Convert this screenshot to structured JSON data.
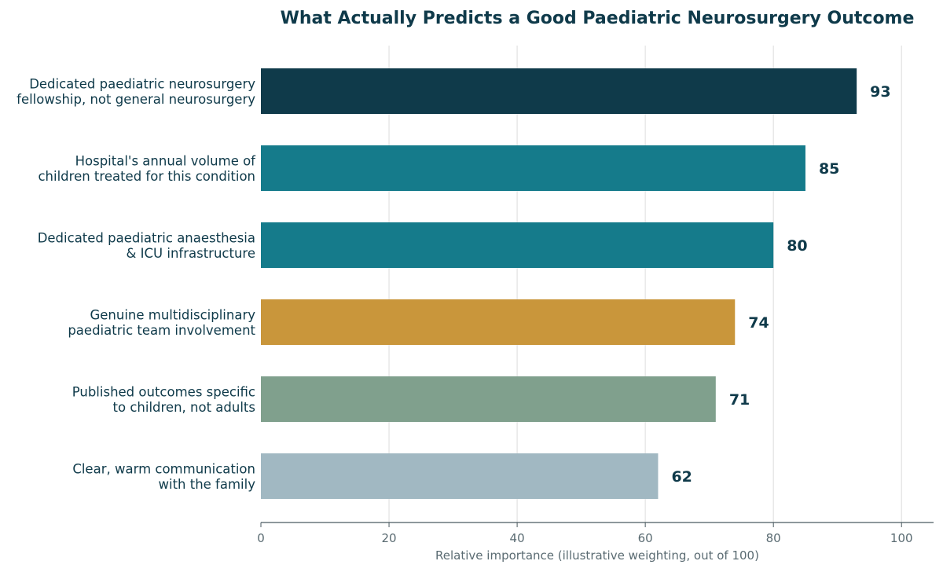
{
  "chart_data": {
    "type": "bar",
    "orientation": "horizontal",
    "title": "What Actually Predicts a Good Paediatric Neurosurgery Outcome",
    "xlabel": "Relative importance (illustrative weighting, out of 100)",
    "ylabel": "",
    "xlim": [
      0,
      105
    ],
    "xticks": [
      0,
      20,
      40,
      60,
      80,
      100
    ],
    "grid": "vertical",
    "categories": [
      [
        "Dedicated paediatric neurosurgery",
        "fellowship, not general neurosurgery"
      ],
      [
        "Hospital's annual volume of",
        "children treated for this condition"
      ],
      [
        "Dedicated paediatric anaesthesia",
        "& ICU infrastructure"
      ],
      [
        "Genuine multidisciplinary",
        "paediatric team involvement"
      ],
      [
        "Published outcomes specific",
        "to children, not adults"
      ],
      [
        "Clear, warm communication",
        "with the family"
      ]
    ],
    "values": [
      93,
      85,
      80,
      74,
      71,
      62
    ],
    "colors": [
      "#0f3a4a",
      "#157b8b",
      "#157b8b",
      "#c9963b",
      "#80a08d",
      "#a1b8c2"
    ]
  }
}
